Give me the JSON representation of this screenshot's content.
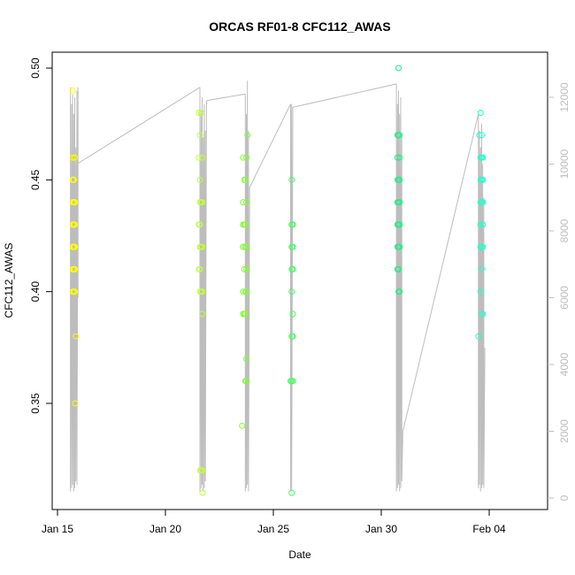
{
  "chart_data": {
    "type": "scatter",
    "title": "ORCAS RF01-8 CFC112_AWAS",
    "xlabel": "Date",
    "ylabel": "CFC112_AWAS",
    "x_ticks": [
      "Jan 15",
      "Jan 20",
      "Jan 25",
      "Jan 30",
      "Feb 04"
    ],
    "y_ticks": [
      "0.35",
      "0.40",
      "0.45",
      "0.50"
    ],
    "y2_ticks": [
      "0",
      "2000",
      "4000",
      "6000",
      "8000",
      "10000",
      "12000"
    ],
    "xlim_days": [
      14.5,
      36.7
    ],
    "ylim": [
      0.303,
      0.512
    ],
    "y2lim": [
      -200,
      12800
    ],
    "grid": false,
    "series": [
      {
        "flight": "RF01",
        "color": "#ffff00",
        "x": [
          15.7,
          15.7,
          15.8,
          15.75,
          15.72,
          15.7,
          15.75,
          15.8,
          15.7,
          15.75,
          15.8,
          15.7,
          15.75,
          15.8,
          15.7,
          15.75,
          15.8,
          15.7,
          15.75,
          15.8,
          15.7,
          15.75,
          15.8,
          15.7,
          15.75,
          15.8,
          15.85,
          15.82
        ],
        "y": [
          0.49,
          0.46,
          0.46,
          0.45,
          0.45,
          0.45,
          0.44,
          0.44,
          0.44,
          0.43,
          0.43,
          0.43,
          0.42,
          0.42,
          0.42,
          0.41,
          0.41,
          0.41,
          0.4,
          0.4,
          0.4,
          0.45,
          0.44,
          0.43,
          0.42,
          0.41,
          0.38,
          0.35
        ]
      },
      {
        "flight": "RF02",
        "color": "#bfff3a",
        "x": [
          21.55,
          21.65,
          21.6,
          21.7,
          21.55,
          21.6,
          21.7,
          21.6,
          21.65,
          21.55,
          21.6,
          21.65,
          21.6,
          21.7,
          21.55,
          21.6,
          21.7,
          21.65,
          21.6,
          21.7,
          21.65,
          21.6,
          21.7,
          21.72
        ],
        "y": [
          0.48,
          0.48,
          0.47,
          0.46,
          0.46,
          0.45,
          0.44,
          0.44,
          0.44,
          0.43,
          0.43,
          0.42,
          0.42,
          0.42,
          0.41,
          0.41,
          0.4,
          0.4,
          0.4,
          0.39,
          0.32,
          0.32,
          0.32,
          0.31
        ]
      },
      {
        "flight": "RF03",
        "color": "#80ff2e",
        "x": [
          23.8,
          23.6,
          23.75,
          23.65,
          23.7,
          23.6,
          23.75,
          23.65,
          23.7,
          23.6,
          23.75,
          23.6,
          23.65,
          23.75,
          23.6,
          23.7,
          23.75,
          23.6,
          23.7,
          23.65,
          23.75,
          23.6,
          23.7,
          23.7,
          23.75,
          23.55
        ],
        "y": [
          0.47,
          0.46,
          0.46,
          0.45,
          0.45,
          0.44,
          0.44,
          0.43,
          0.43,
          0.42,
          0.42,
          0.42,
          0.41,
          0.41,
          0.4,
          0.4,
          0.4,
          0.39,
          0.39,
          0.39,
          0.37,
          0.43,
          0.42,
          0.36,
          0.36,
          0.34
        ]
      },
      {
        "flight": "RF04",
        "color": "#44ff5c",
        "x": [
          25.85,
          25.85,
          25.9,
          25.85,
          25.9,
          25.85,
          25.9,
          25.85,
          25.9,
          25.85,
          25.9,
          25.85,
          25.9,
          25.8,
          25.85
        ],
        "y": [
          0.45,
          0.43,
          0.43,
          0.42,
          0.42,
          0.41,
          0.41,
          0.4,
          0.39,
          0.38,
          0.38,
          0.36,
          0.36,
          0.36,
          0.31
        ]
      },
      {
        "flight": "RF05",
        "color": "#22ee88",
        "x": [
          30.8,
          30.75,
          30.85,
          30.8,
          30.75,
          30.85,
          30.8,
          30.75,
          30.85,
          30.8,
          30.75,
          30.85,
          30.8,
          30.75,
          30.85,
          30.8,
          30.75,
          30.85,
          30.8,
          30.75,
          30.85,
          30.8
        ],
        "y": [
          0.5,
          0.47,
          0.47,
          0.47,
          0.46,
          0.46,
          0.45,
          0.45,
          0.45,
          0.44,
          0.44,
          0.44,
          0.43,
          0.43,
          0.43,
          0.42,
          0.42,
          0.42,
          0.41,
          0.41,
          0.4,
          0.4
        ]
      },
      {
        "flight": "RF06",
        "color": "#22ffcc",
        "x": [
          34.6,
          34.65,
          34.55,
          34.65,
          34.6,
          34.7,
          34.6,
          34.65,
          34.7,
          34.6,
          34.7,
          34.65,
          34.6,
          34.7,
          34.65,
          34.6,
          34.7,
          34.65,
          34.6,
          34.7,
          34.65,
          34.5
        ],
        "y": [
          0.48,
          0.47,
          0.47,
          0.46,
          0.46,
          0.46,
          0.45,
          0.45,
          0.45,
          0.44,
          0.44,
          0.44,
          0.43,
          0.43,
          0.42,
          0.42,
          0.42,
          0.41,
          0.4,
          0.39,
          0.39,
          0.38
        ]
      }
    ],
    "altitude_track": {
      "color": "#bdbdbd",
      "segments": [
        {
          "x": [
            15.6,
            15.6,
            15.65,
            15.65,
            15.7,
            15.7,
            15.75,
            15.75,
            15.8,
            15.8,
            15.85,
            15.85,
            15.9,
            15.9,
            15.95,
            15.95,
            15.9
          ],
          "y": [
            12300,
            200,
            11800,
            300,
            12100,
            400,
            11500,
            200,
            12000,
            300,
            10500,
            500,
            12200,
            400,
            12300,
            6000,
            10000
          ]
        },
        {
          "x": [
            15.9,
            21.6
          ],
          "y": [
            10000,
            12300
          ]
        },
        {
          "x": [
            21.6,
            21.6,
            21.65,
            21.65,
            21.7,
            21.7,
            21.75,
            21.75,
            21.8,
            21.8,
            21.85,
            21.85,
            21.9
          ],
          "y": [
            12300,
            200,
            11500,
            300,
            12000,
            400,
            10800,
            200,
            11800,
            300,
            11000,
            500,
            11900
          ]
        },
        {
          "x": [
            21.9,
            23.7
          ],
          "y": [
            11900,
            12100
          ]
        },
        {
          "x": [
            23.7,
            23.7,
            23.75,
            23.75,
            23.8,
            23.8,
            23.85,
            23.85,
            23.9
          ],
          "y": [
            12100,
            200,
            11500,
            300,
            12500,
            400,
            11000,
            200,
            9300
          ]
        },
        {
          "x": [
            23.9,
            25.8
          ],
          "y": [
            9300,
            11800
          ]
        },
        {
          "x": [
            25.8,
            25.8,
            25.85,
            25.85,
            25.9
          ],
          "y": [
            11800,
            200,
            11800,
            200,
            11700
          ]
        },
        {
          "x": [
            25.9,
            30.7
          ],
          "y": [
            11700,
            12400
          ]
        },
        {
          "x": [
            30.7,
            30.7,
            30.75,
            30.75,
            30.8,
            30.8,
            30.85,
            30.85,
            30.9,
            30.9,
            30.95,
            30.95,
            31.0
          ],
          "y": [
            12400,
            200,
            11800,
            300,
            12200,
            400,
            11500,
            200,
            12000,
            300,
            10800,
            500,
            2000
          ]
        },
        {
          "x": [
            31.0,
            34.5
          ],
          "y": [
            2000,
            11500
          ]
        },
        {
          "x": [
            34.5,
            34.5,
            34.55,
            34.55,
            34.6,
            34.6,
            34.65,
            34.65,
            34.7,
            34.7,
            34.75,
            34.75,
            34.8
          ],
          "y": [
            11500,
            300,
            11000,
            400,
            10500,
            200,
            11200,
            300,
            10000,
            400,
            9000,
            300,
            4500
          ]
        }
      ]
    }
  }
}
